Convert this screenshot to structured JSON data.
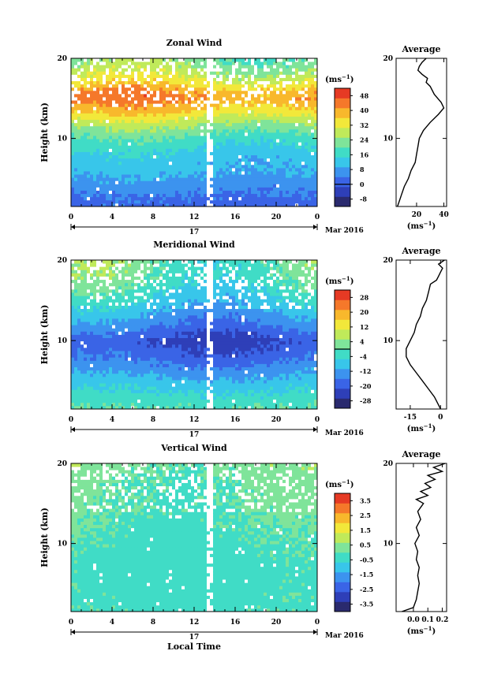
{
  "chart_data": [
    {
      "type": "heatmap",
      "title": "Zonal Wind",
      "ylabel": "Height (km)",
      "xlabel": "",
      "x_ticks": [
        "0",
        "4",
        "8",
        "12",
        "16",
        "20",
        "0"
      ],
      "y_ticks": [
        "20",
        "10"
      ],
      "xlim": [
        0,
        24
      ],
      "ylim": [
        1.5,
        20
      ],
      "day_label": "17",
      "date_label": "Mar 2016",
      "colorbar": {
        "unit_base": "(ms",
        "unit_exp": "−1",
        "unit_close": ")",
        "ticks": [
          "48",
          "40",
          "32",
          "24",
          "16",
          "8",
          "0",
          "-8"
        ],
        "range": [
          -12,
          52
        ],
        "zero_contour": "0"
      },
      "field_profile": {
        "heights": [
          2,
          4,
          6,
          8,
          10,
          12,
          13.5,
          15,
          16,
          17,
          18,
          19,
          20
        ],
        "values": [
          2,
          6,
          10,
          13,
          18,
          27,
          36,
          42,
          40,
          33,
          28,
          25,
          22
        ],
        "diurnal_amplitude": 5
      },
      "average_profile": {
        "title": "Average",
        "heights": [
          1.5,
          2,
          3,
          4,
          5,
          6,
          7,
          8,
          9,
          10,
          11,
          12,
          13,
          13.8,
          14.5,
          15.5,
          16.5,
          17,
          17.5,
          18,
          18.5,
          19,
          19.5,
          20
        ],
        "values": [
          6,
          7,
          9,
          11,
          14,
          16,
          19,
          20,
          21,
          22,
          25,
          30,
          36,
          40,
          38,
          33,
          30,
          27,
          28,
          24,
          21,
          22,
          24,
          27
        ],
        "xticks": [
          "20",
          "40"
        ],
        "xlim": [
          5,
          42
        ],
        "xtick_values": [
          20,
          40
        ],
        "unit_base": "(ms",
        "unit_exp": "−1",
        "unit_close": ")"
      }
    },
    {
      "type": "heatmap",
      "title": "Meridional Wind",
      "ylabel": "Height (km)",
      "xlabel": "",
      "x_ticks": [
        "0",
        "4",
        "8",
        "12",
        "16",
        "20",
        "0"
      ],
      "y_ticks": [
        "20",
        "10"
      ],
      "xlim": [
        0,
        24
      ],
      "ylim": [
        1.5,
        20
      ],
      "day_label": "17",
      "date_label": "Mar 2016",
      "colorbar": {
        "unit_base": "(ms",
        "unit_exp": "−1",
        "unit_close": ")",
        "ticks": [
          "28",
          "20",
          "12",
          "4",
          "-4",
          "-12",
          "-20",
          "-28"
        ],
        "range": [
          -32,
          32
        ],
        "zero_contour": "0"
      },
      "field_profile": {
        "heights": [
          2,
          4,
          6,
          8,
          10,
          12,
          14,
          16,
          18,
          20
        ],
        "values": [
          -1,
          -6,
          -12,
          -18,
          -22,
          -15,
          -9,
          -4,
          0,
          1
        ],
        "diurnal_amplitude": 6
      },
      "average_profile": {
        "title": "Average",
        "heights": [
          1.5,
          2,
          3,
          4,
          5,
          6,
          7,
          8,
          9,
          10,
          11,
          12,
          13,
          14,
          15,
          16,
          17,
          17.5,
          18,
          18.5,
          19,
          19.5,
          20
        ],
        "values": [
          0,
          -1,
          -3,
          -6,
          -9,
          -12,
          -15,
          -17,
          -17,
          -15,
          -13,
          -12,
          -10,
          -9,
          -7,
          -6,
          -5,
          -2,
          -1,
          0,
          1,
          -1,
          2
        ],
        "xticks": [
          "-15",
          "0"
        ],
        "xlim": [
          -22,
          3
        ],
        "xtick_values": [
          -15,
          0
        ],
        "unit_base": "(ms",
        "unit_exp": "−1",
        "unit_close": ")"
      }
    },
    {
      "type": "heatmap",
      "title": "Vertical Wind",
      "ylabel": "Height (km)",
      "xlabel": "Local Time",
      "x_ticks": [
        "0",
        "4",
        "8",
        "12",
        "16",
        "20",
        "0"
      ],
      "y_ticks": [
        "20",
        "10"
      ],
      "xlim": [
        0,
        24
      ],
      "ylim": [
        1.5,
        20
      ],
      "day_label": "17",
      "date_label": "Mar 2016",
      "colorbar": {
        "unit_base": "(ms",
        "unit_exp": "−1",
        "unit_close": ")",
        "ticks": [
          "3.5",
          "2.5",
          "1.5",
          "0.5",
          "-0.5",
          "-1.5",
          "-2.5",
          "-3.5"
        ],
        "range": [
          -4,
          4
        ],
        "zero_contour": ""
      },
      "field_profile": {
        "heights": [
          2,
          6,
          10,
          14,
          18,
          20
        ],
        "values": [
          -0.2,
          -0.3,
          -0.2,
          0.0,
          0.1,
          0.3
        ],
        "diurnal_amplitude": 0.3
      },
      "average_profile": {
        "title": "Average",
        "heights": [
          1.5,
          2,
          3,
          4,
          5,
          6,
          7,
          8,
          9,
          10,
          11,
          12,
          13,
          14,
          15,
          15.5,
          16,
          16.5,
          17,
          17.5,
          18,
          18.5,
          19,
          19.5,
          20
        ],
        "values": [
          -0.08,
          0.0,
          0.02,
          0.03,
          0.04,
          0.03,
          0.04,
          0.02,
          0.03,
          0.01,
          0.04,
          0.02,
          0.05,
          0.03,
          0.07,
          0.02,
          0.1,
          0.05,
          0.12,
          0.08,
          0.15,
          0.1,
          0.2,
          0.14,
          0.22
        ],
        "xticks": [
          "0.0",
          "0.1",
          "0.2"
        ],
        "xlim": [
          -0.12,
          0.23
        ],
        "xtick_values": [
          0.0,
          0.1,
          0.2
        ],
        "unit_base": "(ms",
        "unit_exp": "−1",
        "unit_close": ")"
      }
    }
  ]
}
